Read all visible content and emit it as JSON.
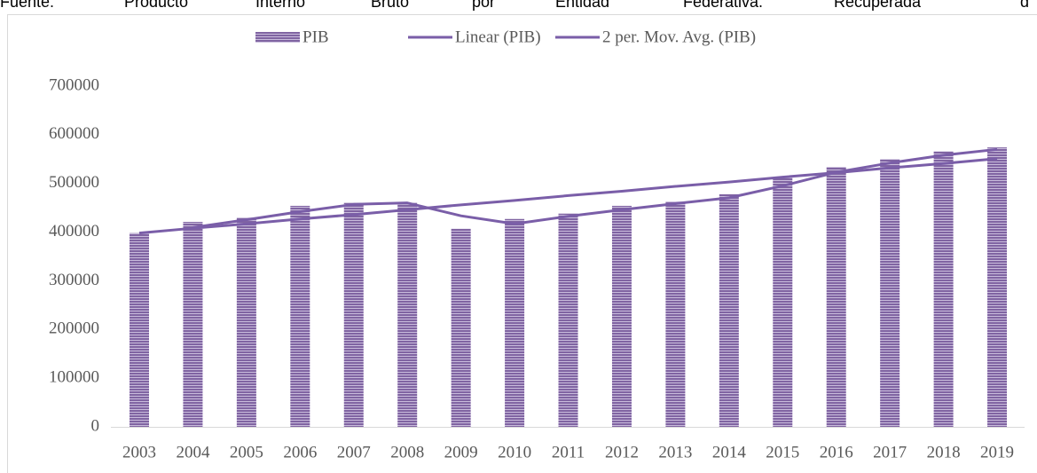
{
  "caption_words": [
    "Fuente:",
    "Producto",
    "Interno",
    "Bruto",
    "por",
    "Entidad",
    "Federativa.",
    "Recuperada",
    "d"
  ],
  "chart_data": {
    "type": "bar",
    "categories": [
      "2003",
      "2004",
      "2005",
      "2006",
      "2007",
      "2008",
      "2009",
      "2010",
      "2011",
      "2012",
      "2013",
      "2014",
      "2015",
      "2016",
      "2017",
      "2018",
      "2019"
    ],
    "series": [
      {
        "name": "PIB",
        "type": "bar",
        "color": "#8064a2",
        "values": [
          398000,
          421000,
          430000,
          454000,
          460000,
          460000,
          407000,
          427000,
          438000,
          454000,
          463000,
          478000,
          512000,
          534000,
          550000,
          566000,
          574000
        ]
      },
      {
        "name": "Linear (PIB)",
        "type": "line",
        "color": "#7a5ea8",
        "values": [
          398000,
          408000,
          417000,
          427000,
          436000,
          446000,
          456000,
          465000,
          475000,
          484000,
          494000,
          503000,
          513000,
          522000,
          532000,
          541000,
          551000
        ]
      },
      {
        "name": "2 per. Mov. Avg. (PIB)",
        "type": "line",
        "color": "#7a5ea8",
        "values": [
          null,
          409500,
          425500,
          442000,
          457000,
          460000,
          433500,
          417000,
          432500,
          446000,
          458500,
          470500,
          495000,
          523000,
          542000,
          558000,
          570000
        ]
      }
    ],
    "ylim": [
      0,
      700000
    ],
    "yticks": [
      0,
      100000,
      200000,
      300000,
      400000,
      500000,
      600000,
      700000
    ],
    "grid": false,
    "legend": "top"
  }
}
